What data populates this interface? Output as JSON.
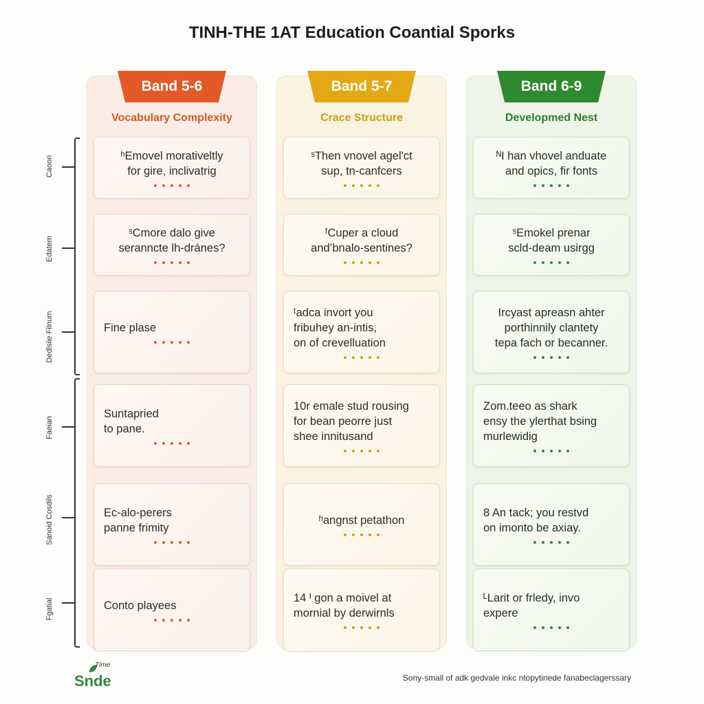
{
  "title": "TINH-THE 1AT Education Coantial Sporks",
  "columns": [
    {
      "band": "Band 5-6",
      "subtitle": "Vocabulary Complexity",
      "cards": [
        "ʰEmovel morativeltly\nfor gire, inclivatrig",
        "ˢCmore dalo give\nseranncte lh-dránes?",
        "Fine plase",
        "Suntapried\nto pane.",
        "Ec-alo-perers\npanne frimity",
        "Conto playees"
      ]
    },
    {
      "band": "Band 5-7",
      "subtitle": "Crace Structure",
      "cards": [
        "ˢThen vnovel agel'ct\nsup, tn-canfcers",
        "ᶠCuper a cloud\nand’bnalo-sentines?",
        "ᵗadca invort you\nfribuhey an-intis,\non of crevelluation",
        "10r emale stud rousing\nfor bean peorre just\nshee innitusand",
        "ʰangnst petathon",
        "14 ᴵ gon a moivel at\nmornial by derwirnls"
      ]
    },
    {
      "band": "Band 6-9",
      "subtitle": "Developmed Nest",
      "cards": [
        "ᴺI han vhovel anduate\nand opics, fir fonts",
        "ˢEmokel prenar\nscld-deam usirgg",
        "Ircyast apreasn ahter\nporthinnily clantety\ntepa fach or becanner.",
        "Zom.teeo as shark\nensy the ylerthat bsing\nmurlewidig",
        "8 An tack; you restvd\non imonto be axiay.",
        "ᴸLarit or frledy, invo\nexpere"
      ]
    }
  ],
  "side_labels": [
    "Caoori",
    "Edatem",
    "Dedlsiie Filnum",
    "Faeian",
    "Sanoid Cosdils",
    "Fgatial"
  ],
  "logo": {
    "small": "Time",
    "main": "Snde"
  },
  "footer": "Sony-small of adk gedvale inkc ntopytinede fanabeclagerssary",
  "colors": {
    "band_5_6": "#e35a28",
    "band_5_7": "#e3a915",
    "band_6_9": "#2f8a2f"
  }
}
